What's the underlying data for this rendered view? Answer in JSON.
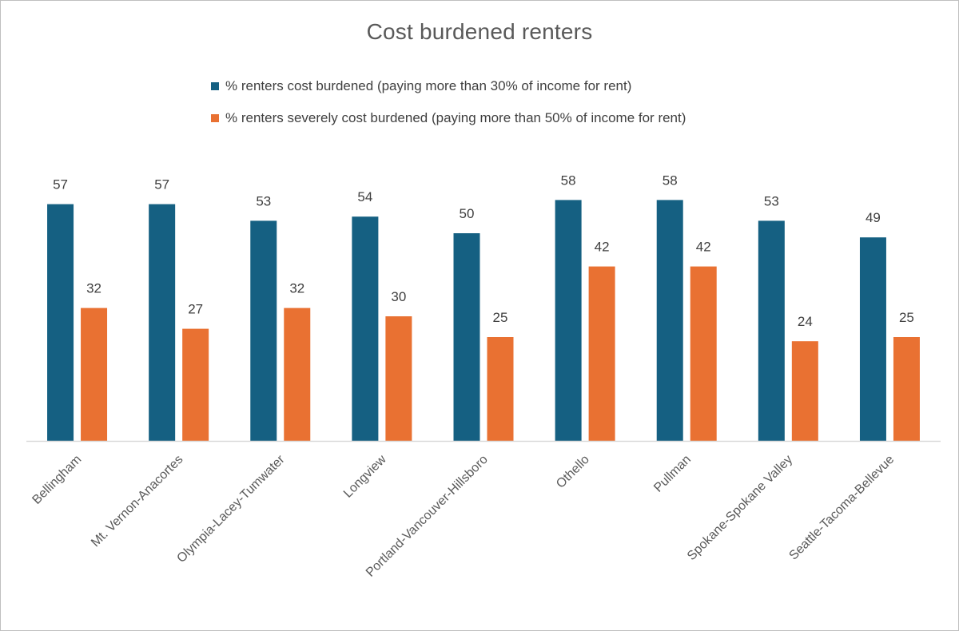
{
  "chart_data": {
    "type": "bar",
    "title": "Cost burdened renters",
    "xlabel": "",
    "ylabel": "",
    "ylim": [
      0,
      60
    ],
    "grid": false,
    "legend_position": "top",
    "categories": [
      "Bellingham",
      "Mt. Vernon-Anacortes",
      "Olympia-Lacey-Tumwater",
      "Longview",
      "Portland-Vancouver-Hillsboro",
      "Othello",
      "Pullman",
      "Spokane-Spokane Valley",
      "Seattle-Tacoma-Bellevue"
    ],
    "series": [
      {
        "name": "% renters cost burdened (paying more than 30% of income for rent)",
        "color": "#156082",
        "values": [
          57,
          57,
          53,
          54,
          50,
          58,
          58,
          53,
          49
        ]
      },
      {
        "name": "% renters severely cost burdened (paying more than 50% of income for rent)",
        "color": "#E97132",
        "values": [
          32,
          27,
          32,
          30,
          25,
          42,
          42,
          24,
          25
        ]
      }
    ]
  }
}
